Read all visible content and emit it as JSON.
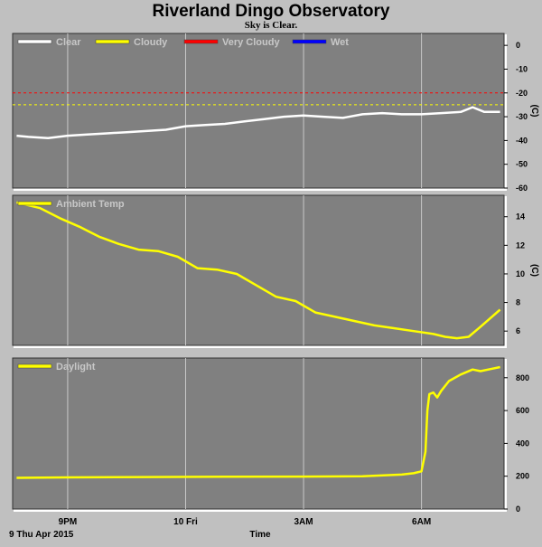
{
  "chart_data": {
    "title": "Riverland Dingo Observatory",
    "subtitle": "Sky is Clear.",
    "xlabel": "Time",
    "date_label": "9 Thu Apr 2015",
    "x_ticks": [
      "9PM",
      "10 Fri",
      "3AM",
      "6AM"
    ],
    "x_tick_hours": [
      21,
      24,
      27,
      30
    ],
    "x_range_hours": [
      19.6,
      32.1
    ],
    "panels": [
      {
        "type": "line",
        "unit": "(C)",
        "ylim": [
          -60,
          5
        ],
        "y_ticks": [
          0,
          -10,
          -20,
          -30,
          -40,
          -50,
          -60
        ],
        "legend": [
          {
            "label": "Clear",
            "color": "#ffffff"
          },
          {
            "label": "Cloudy",
            "color": "#ffff00"
          },
          {
            "label": "Very Cloudy",
            "color": "#ff0000"
          },
          {
            "label": "Wet",
            "color": "#0000ff"
          }
        ],
        "thresholds": [
          {
            "value": -20,
            "color": "#ff0000"
          },
          {
            "value": -25,
            "color": "#ffff00"
          }
        ],
        "series": [
          {
            "name": "Clear",
            "color": "#ffffff",
            "x": [
              19.7,
              20.0,
              20.5,
              21.0,
              21.5,
              22.0,
              22.5,
              23.0,
              23.5,
              24.0,
              24.5,
              25.0,
              25.5,
              26.0,
              26.5,
              27.0,
              27.5,
              28.0,
              28.5,
              29.0,
              29.5,
              30.0,
              30.5,
              31.0,
              31.3,
              31.6,
              32.0
            ],
            "values": [
              -38,
              -38.5,
              -39,
              -38,
              -37.5,
              -37,
              -36.5,
              -36,
              -35.5,
              -34,
              -33.5,
              -33,
              -32,
              -31,
              -30,
              -29.5,
              -30,
              -30.5,
              -29,
              -28.5,
              -29,
              -29,
              -28.5,
              -28,
              -26,
              -28,
              -28
            ]
          }
        ]
      },
      {
        "type": "line",
        "unit": "(C)",
        "ylim": [
          5,
          15.5
        ],
        "y_ticks": [
          14,
          12,
          10,
          8,
          6
        ],
        "legend": [
          {
            "label": "Ambient Temp",
            "color": "#ffff00"
          }
        ],
        "series": [
          {
            "name": "Ambient Temp",
            "color": "#ffff00",
            "x": [
              19.7,
              20.3,
              20.8,
              21.3,
              21.8,
              22.3,
              22.8,
              23.3,
              23.8,
              24.3,
              24.8,
              25.3,
              25.8,
              26.3,
              26.8,
              27.3,
              27.8,
              28.3,
              28.8,
              29.3,
              29.8,
              30.3,
              30.6,
              30.9,
              31.2,
              31.5,
              32.0
            ],
            "values": [
              15,
              14.6,
              13.9,
              13.3,
              12.6,
              12.1,
              11.7,
              11.6,
              11.2,
              10.4,
              10.3,
              10.0,
              9.2,
              8.4,
              8.1,
              7.3,
              7.0,
              6.7,
              6.4,
              6.2,
              6.0,
              5.8,
              5.6,
              5.5,
              5.6,
              6.3,
              7.5
            ]
          }
        ]
      },
      {
        "type": "line",
        "unit": "",
        "ylim": [
          0,
          920
        ],
        "y_ticks": [
          800,
          600,
          400,
          200,
          0
        ],
        "legend": [
          {
            "label": "Daylight",
            "color": "#ffff00"
          }
        ],
        "series": [
          {
            "name": "Daylight",
            "color": "#ffff00",
            "x": [
              19.7,
              21.0,
              23.0,
              25.0,
              27.0,
              28.5,
              29.5,
              29.8,
              30.0,
              30.1,
              30.15,
              30.2,
              30.3,
              30.4,
              30.5,
              30.7,
              31.0,
              31.3,
              31.5,
              31.8,
              32.0
            ],
            "values": [
              190,
              193,
              195,
              197,
              198,
              200,
              210,
              218,
              230,
              350,
              600,
              700,
              710,
              680,
              720,
              780,
              820,
              850,
              840,
              855,
              865
            ]
          }
        ]
      }
    ]
  }
}
